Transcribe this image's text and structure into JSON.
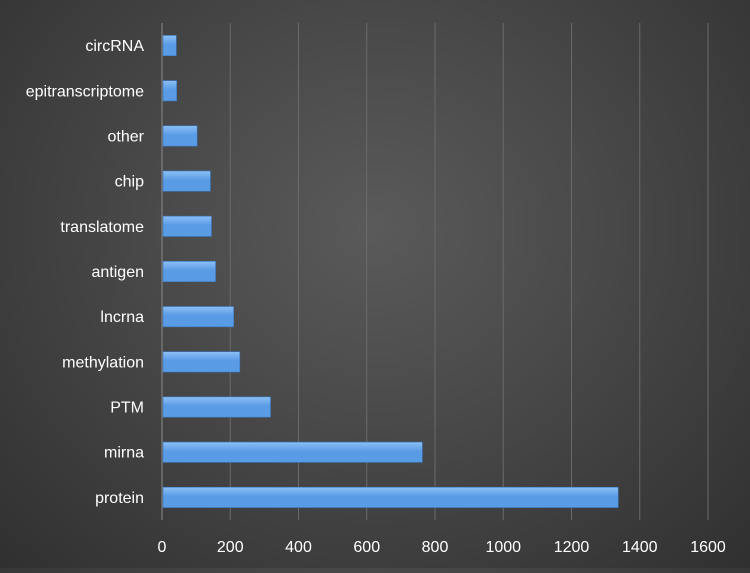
{
  "chart_data": {
    "type": "bar",
    "orientation": "horizontal",
    "title": "",
    "xlabel": "",
    "ylabel": "",
    "categories": [
      "circRNA",
      "epitranscriptome",
      "other",
      "chip",
      "translatome",
      "antigen",
      "lncrna",
      "methylation",
      "PTM",
      "mirna",
      "protein"
    ],
    "values": [
      42,
      43,
      103,
      142,
      145,
      157,
      210,
      228,
      318,
      763,
      1337
    ],
    "xlim": [
      0,
      1600
    ],
    "x_ticks": [
      "0",
      "200",
      "400",
      "600",
      "800",
      "1000",
      "1200",
      "1400",
      "1600"
    ],
    "x_tick_values": [
      0,
      200,
      400,
      600,
      800,
      1000,
      1200,
      1400,
      1600
    ],
    "grid": "vertical major gridlines",
    "legend": "none",
    "bar_color": "#5a9be6",
    "bar_highlight_color": "#8cc0f4",
    "background_color": "#474747",
    "gridline_color": "#6a6a6a",
    "text_color": "#ffffff"
  }
}
